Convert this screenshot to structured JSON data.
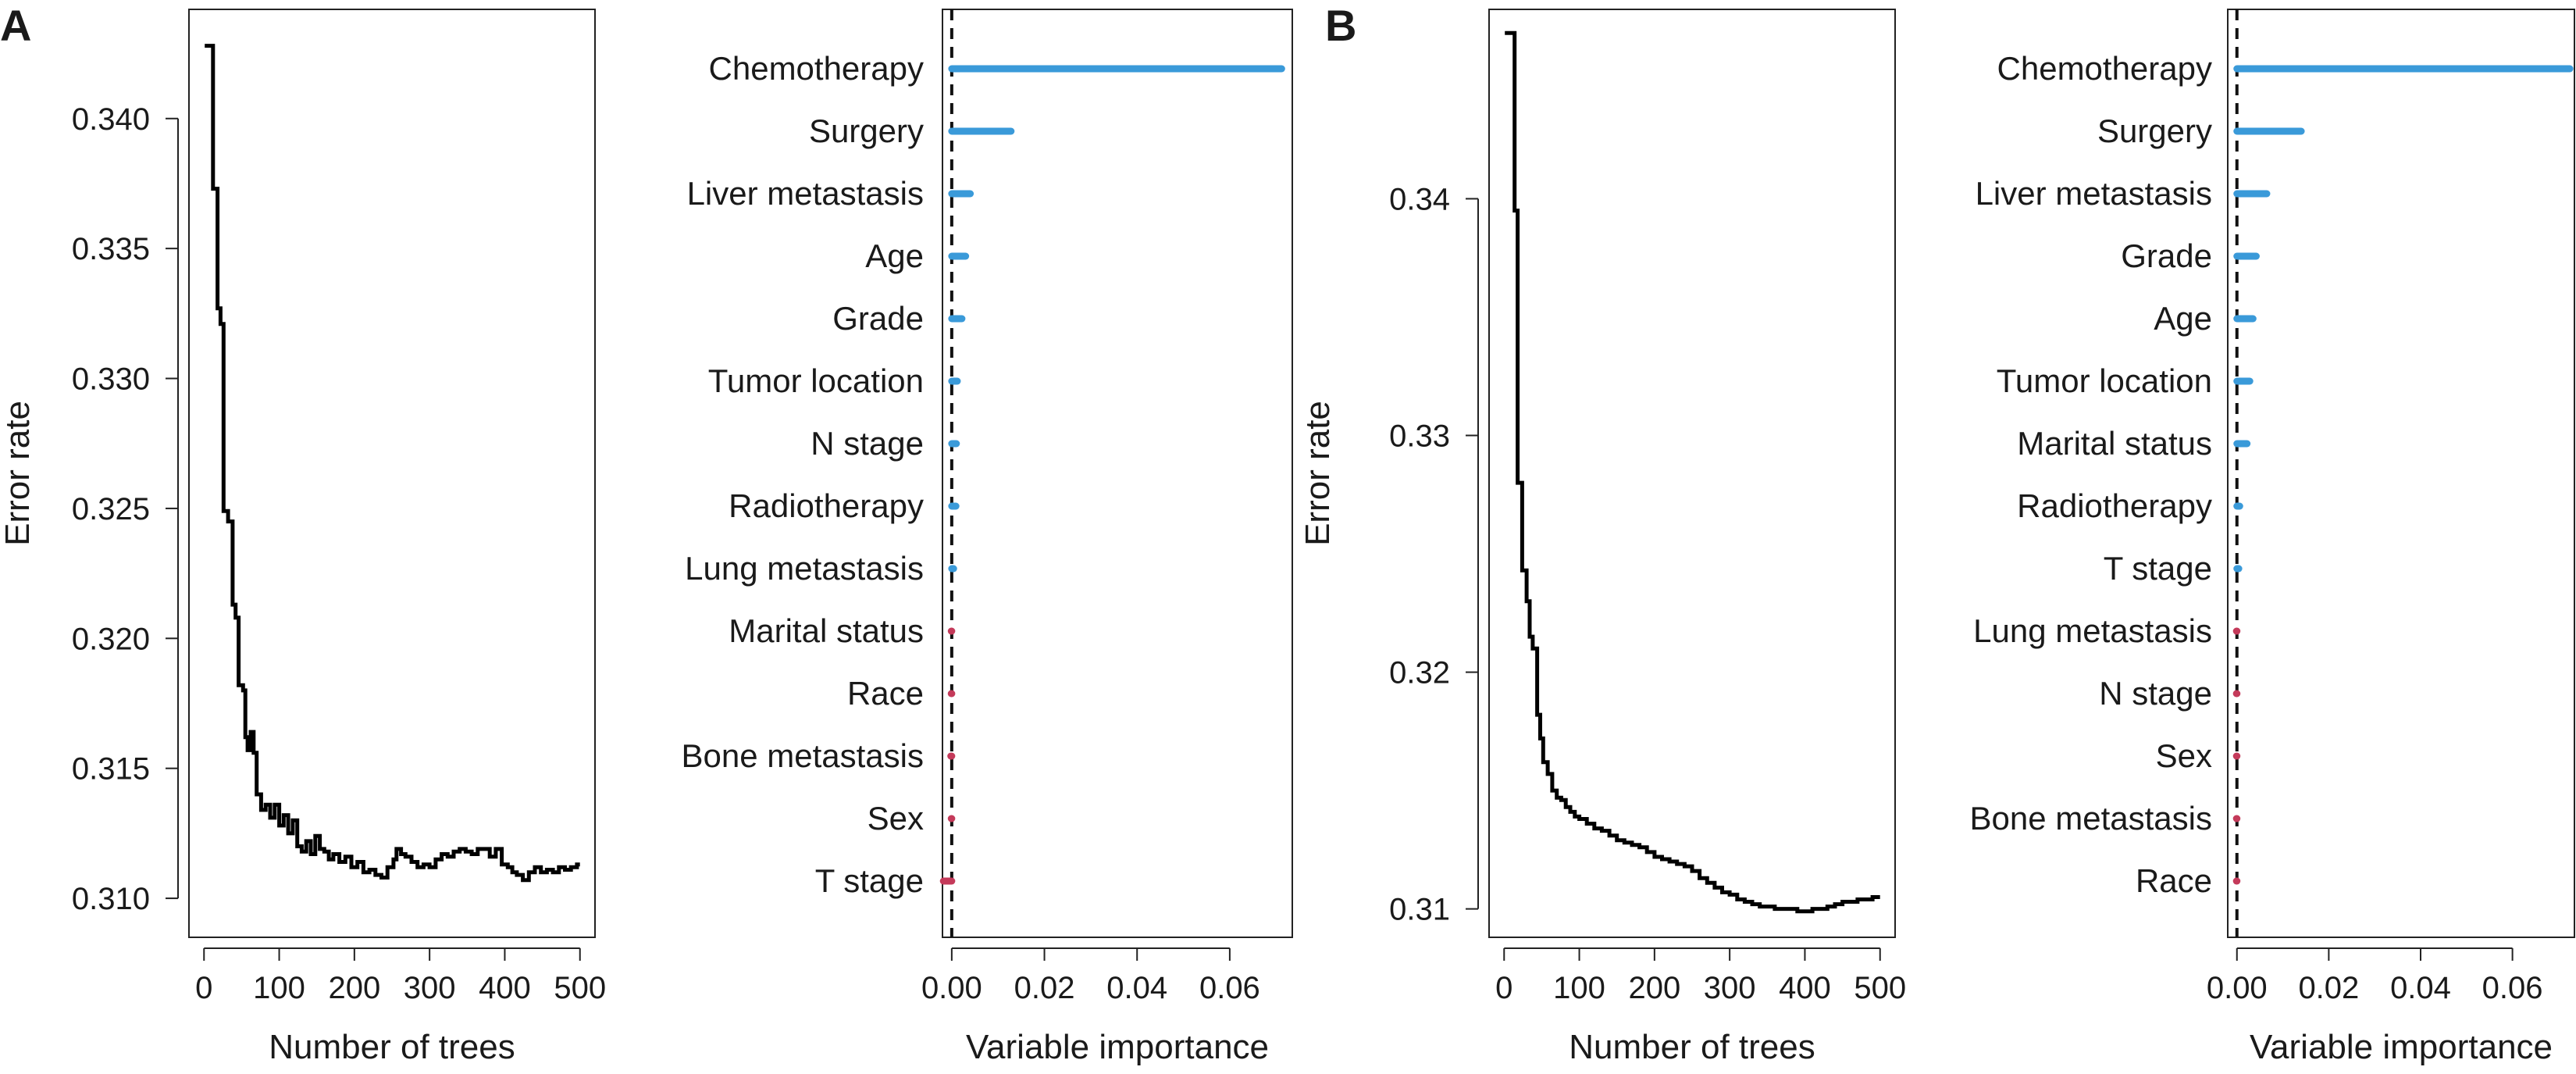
{
  "panels": [
    {
      "label": "A",
      "error_chart": {
        "type": "line",
        "title": "",
        "xlabel": "Number of trees",
        "ylabel": "Error rate",
        "xlim": [
          -20,
          520
        ],
        "ylim": [
          0.3085,
          0.3442
        ],
        "xticks": [
          0,
          100,
          200,
          300,
          400,
          500
        ],
        "yticks": [
          0.31,
          0.315,
          0.32,
          0.325,
          0.33,
          0.335,
          0.34
        ],
        "ytick_labels": [
          "0.310",
          "0.315",
          "0.320",
          "0.325",
          "0.330",
          "0.335",
          "0.340"
        ],
        "line_color": "#000000",
        "x": [
          1,
          8,
          12,
          18,
          22,
          26,
          32,
          38,
          42,
          46,
          52,
          55,
          58,
          62,
          66,
          70,
          76,
          82,
          88,
          94,
          100,
          106,
          112,
          118,
          124,
          130,
          136,
          142,
          148,
          154,
          160,
          166,
          172,
          180,
          188,
          196,
          204,
          212,
          220,
          228,
          236,
          244,
          252,
          256,
          262,
          268,
          276,
          284,
          292,
          300,
          308,
          316,
          324,
          332,
          340,
          348,
          356,
          364,
          372,
          380,
          388,
          396,
          404,
          410,
          416,
          424,
          432,
          440,
          448,
          456,
          464,
          472,
          480,
          488,
          496,
          500
        ],
        "y": [
          0.3428,
          0.3428,
          0.3373,
          0.3327,
          0.3321,
          0.3249,
          0.3245,
          0.3213,
          0.3208,
          0.3182,
          0.318,
          0.3162,
          0.3157,
          0.3164,
          0.3156,
          0.314,
          0.3134,
          0.3136,
          0.3131,
          0.3136,
          0.3128,
          0.3132,
          0.3125,
          0.313,
          0.312,
          0.3118,
          0.3122,
          0.3117,
          0.3124,
          0.3119,
          0.3118,
          0.3115,
          0.3117,
          0.3114,
          0.3116,
          0.3112,
          0.3114,
          0.311,
          0.3111,
          0.3109,
          0.3108,
          0.3112,
          0.3115,
          0.3119,
          0.3117,
          0.3116,
          0.3114,
          0.3112,
          0.3113,
          0.3112,
          0.3115,
          0.3117,
          0.3116,
          0.3118,
          0.3119,
          0.3118,
          0.3117,
          0.3119,
          0.3119,
          0.3116,
          0.3119,
          0.3113,
          0.3112,
          0.311,
          0.3109,
          0.3107,
          0.311,
          0.3112,
          0.311,
          0.3111,
          0.311,
          0.3112,
          0.3111,
          0.3112,
          0.3113,
          0.3113
        ]
      },
      "importance_chart": {
        "type": "bar",
        "title": "",
        "xlabel": "Variable importance",
        "ylabel": "",
        "xlim": [
          -0.002,
          0.0735
        ],
        "xticks": [
          0.0,
          0.02,
          0.04,
          0.06
        ],
        "xtick_labels": [
          "0.00",
          "0.02",
          "0.04",
          "0.06"
        ],
        "positive_color": "#3a9ad9",
        "negative_color": "#c43a5a",
        "categories": [
          "Chemotherapy",
          "Surgery",
          "Liver metastasis",
          "Age",
          "Grade",
          "Tumor location",
          "N stage",
          "Radiotherapy",
          "Lung metastasis",
          "Marital status",
          "Race",
          "Bone metastasis",
          "Sex",
          "T stage"
        ],
        "values": [
          0.0712,
          0.0128,
          0.004,
          0.003,
          0.0022,
          0.0012,
          0.001,
          0.0009,
          0.0004,
          -0.0001,
          -0.0001,
          -0.0002,
          -0.0001,
          -0.0018
        ]
      }
    },
    {
      "label": "B",
      "error_chart": {
        "type": "line",
        "title": "",
        "xlabel": "Number of trees",
        "ylabel": "Error rate",
        "xlim": [
          -20,
          520
        ],
        "ylim": [
          0.3088,
          0.348
        ],
        "xticks": [
          0,
          100,
          200,
          300,
          400,
          500
        ],
        "yticks": [
          0.31,
          0.32,
          0.33,
          0.34
        ],
        "ytick_labels": [
          "0.31",
          "0.32",
          "0.33",
          "0.34"
        ],
        "line_color": "#000000",
        "x": [
          1,
          10,
          14,
          18,
          24,
          30,
          34,
          38,
          44,
          48,
          52,
          58,
          64,
          70,
          76,
          82,
          88,
          94,
          100,
          110,
          120,
          130,
          140,
          150,
          160,
          170,
          180,
          190,
          200,
          210,
          220,
          230,
          240,
          250,
          260,
          270,
          280,
          290,
          300,
          310,
          320,
          330,
          340,
          350,
          360,
          370,
          380,
          390,
          400,
          410,
          420,
          430,
          440,
          450,
          460,
          470,
          480,
          490,
          500
        ],
        "y": [
          0.347,
          0.347,
          0.3395,
          0.328,
          0.3243,
          0.323,
          0.3215,
          0.321,
          0.3182,
          0.3172,
          0.3162,
          0.3157,
          0.315,
          0.3147,
          0.3146,
          0.3143,
          0.3141,
          0.3139,
          0.3138,
          0.3136,
          0.3134,
          0.3133,
          0.3131,
          0.3129,
          0.3128,
          0.3127,
          0.3126,
          0.3124,
          0.3122,
          0.3121,
          0.312,
          0.3119,
          0.3118,
          0.3116,
          0.3113,
          0.3111,
          0.3109,
          0.3107,
          0.3106,
          0.3104,
          0.3103,
          0.3102,
          0.3101,
          0.3101,
          0.31,
          0.31,
          0.31,
          0.3099,
          0.3099,
          0.31,
          0.31,
          0.3101,
          0.3102,
          0.3103,
          0.3103,
          0.3104,
          0.3104,
          0.3105,
          0.3105
        ]
      },
      "importance_chart": {
        "type": "bar",
        "title": "",
        "xlabel": "Variable importance",
        "ylabel": "",
        "xlim": [
          -0.002,
          0.0735
        ],
        "xticks": [
          0.0,
          0.02,
          0.04,
          0.06
        ],
        "xtick_labels": [
          "0.00",
          "0.02",
          "0.04",
          "0.06"
        ],
        "positive_color": "#3a9ad9",
        "negative_color": "#c43a5a",
        "categories": [
          "Chemotherapy",
          "Surgery",
          "Liver metastasis",
          "Grade",
          "Age",
          "Tumor location",
          "Marital status",
          "Radiotherapy",
          "T stage",
          "Lung metastasis",
          "N stage",
          "Sex",
          "Bone metastasis",
          "Race"
        ],
        "values": [
          0.0725,
          0.014,
          0.0065,
          0.0042,
          0.0035,
          0.0028,
          0.0022,
          0.0006,
          0.0004,
          -0.0001,
          -0.0001,
          -0.0001,
          -0.0001,
          -0.0001
        ]
      }
    }
  ]
}
